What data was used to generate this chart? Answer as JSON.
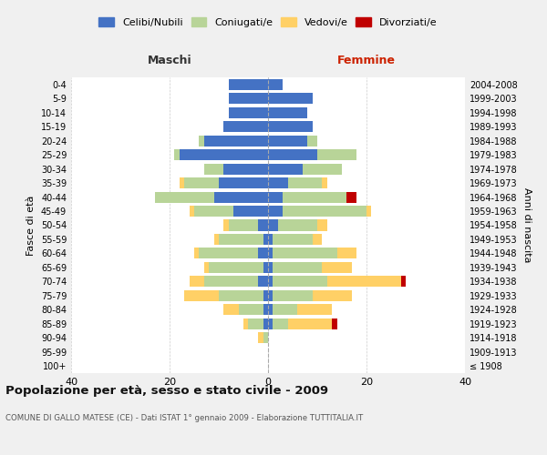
{
  "age_groups": [
    "100+",
    "95-99",
    "90-94",
    "85-89",
    "80-84",
    "75-79",
    "70-74",
    "65-69",
    "60-64",
    "55-59",
    "50-54",
    "45-49",
    "40-44",
    "35-39",
    "30-34",
    "25-29",
    "20-24",
    "15-19",
    "10-14",
    "5-9",
    "0-4"
  ],
  "birth_years": [
    "≤ 1908",
    "1909-1913",
    "1914-1918",
    "1919-1923",
    "1924-1928",
    "1929-1933",
    "1934-1938",
    "1939-1943",
    "1944-1948",
    "1949-1953",
    "1954-1958",
    "1959-1963",
    "1964-1968",
    "1969-1973",
    "1974-1978",
    "1979-1983",
    "1984-1988",
    "1989-1993",
    "1994-1998",
    "1999-2003",
    "2004-2008"
  ],
  "maschi": {
    "celibi": [
      0,
      0,
      0,
      1,
      1,
      1,
      2,
      1,
      2,
      1,
      2,
      7,
      11,
      10,
      9,
      18,
      13,
      9,
      8,
      8,
      8
    ],
    "coniugati": [
      0,
      0,
      1,
      3,
      5,
      9,
      11,
      11,
      12,
      9,
      6,
      8,
      12,
      7,
      4,
      1,
      1,
      0,
      0,
      0,
      0
    ],
    "vedovi": [
      0,
      0,
      1,
      1,
      3,
      7,
      3,
      1,
      1,
      1,
      1,
      1,
      0,
      1,
      0,
      0,
      0,
      0,
      0,
      0,
      0
    ],
    "divorziati": [
      0,
      0,
      0,
      0,
      0,
      0,
      0,
      0,
      0,
      0,
      0,
      0,
      0,
      0,
      0,
      0,
      0,
      0,
      0,
      0,
      0
    ]
  },
  "femmine": {
    "nubili": [
      0,
      0,
      0,
      1,
      1,
      1,
      1,
      1,
      1,
      1,
      2,
      3,
      3,
      4,
      7,
      10,
      8,
      9,
      8,
      9,
      3
    ],
    "coniugate": [
      0,
      0,
      0,
      3,
      5,
      8,
      11,
      10,
      13,
      8,
      8,
      17,
      13,
      7,
      8,
      8,
      2,
      0,
      0,
      0,
      0
    ],
    "vedove": [
      0,
      0,
      0,
      9,
      7,
      8,
      15,
      6,
      4,
      2,
      2,
      1,
      0,
      1,
      0,
      0,
      0,
      0,
      0,
      0,
      0
    ],
    "divorziate": [
      0,
      0,
      0,
      1,
      0,
      0,
      1,
      0,
      0,
      0,
      0,
      0,
      2,
      0,
      0,
      0,
      0,
      0,
      0,
      0,
      0
    ]
  },
  "colors": {
    "celibi_nubili": "#4472C4",
    "coniugati": "#B8D498",
    "vedovi": "#FFD066",
    "divorziati": "#C00000"
  },
  "title": "Popolazione per età, sesso e stato civile - 2009",
  "subtitle": "COMUNE DI GALLO MATESE (CE) - Dati ISTAT 1° gennaio 2009 - Elaborazione TUTTITALIA.IT",
  "xlabel_left": "Maschi",
  "xlabel_right": "Femmine",
  "ylabel_left": "Fasce di età",
  "ylabel_right": "Anni di nascita",
  "legend_labels": [
    "Celibi/Nubili",
    "Coniugati/e",
    "Vedovi/e",
    "Divorziati/e"
  ],
  "xlim": 40,
  "background_color": "#f0f0f0",
  "bar_background": "#ffffff"
}
